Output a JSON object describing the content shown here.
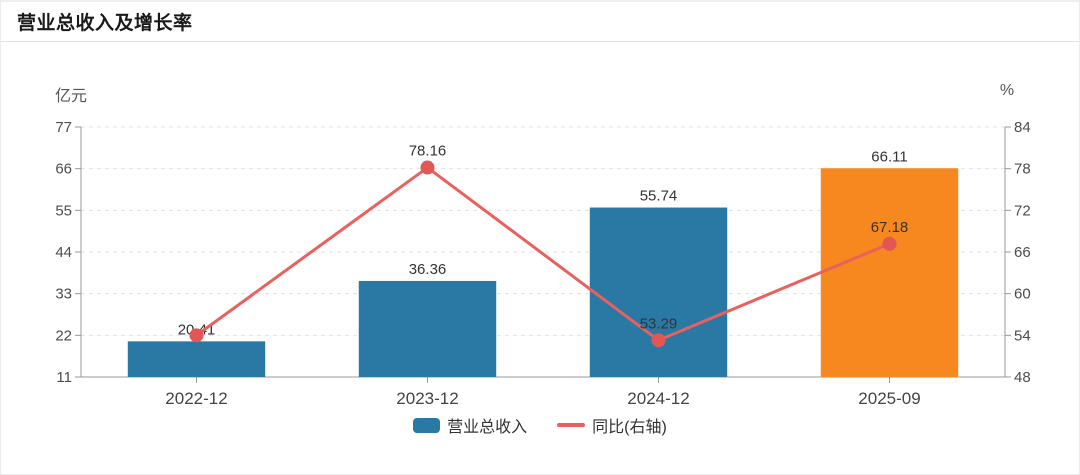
{
  "header": {
    "title": "营业总收入及增长率"
  },
  "chart_data": {
    "type": "bar+line",
    "title": "营业总收入及增长率",
    "categories": [
      "2022-12",
      "2023-12",
      "2024-12",
      "2025-09"
    ],
    "series": [
      {
        "name": "营业总收入",
        "type": "bar",
        "y_axis": "left",
        "unit": "亿元",
        "values": [
          20.41,
          36.36,
          55.74,
          66.11
        ],
        "data_labels": [
          "20.41",
          "36.36",
          "55.74",
          "66.11"
        ],
        "bar_colors": [
          "#2979a4",
          "#2979a4",
          "#2979a4",
          "#f6881f"
        ]
      },
      {
        "name": "同比(右轴)",
        "type": "line",
        "y_axis": "right",
        "unit": "%",
        "values": [
          54.0,
          78.16,
          53.29,
          67.18
        ],
        "data_labels": [
          "",
          "78.16",
          "53.29",
          "67.18"
        ],
        "note": "first point label hidden behind bar label; 54.0 estimated from gridline"
      }
    ],
    "left_axis": {
      "name": "亿元",
      "min": 11,
      "max": 77,
      "ticks": [
        77,
        66,
        55,
        44,
        33,
        22,
        11
      ]
    },
    "right_axis": {
      "name": "%",
      "min": 48,
      "max": 84,
      "ticks": [
        84,
        78,
        72,
        66,
        60,
        54,
        48
      ]
    },
    "x_axis": {
      "labels": [
        "2022-12",
        "2023-12",
        "2024-12",
        "2025-09"
      ]
    },
    "grid": "horizontal-dashed",
    "legend_position": "bottom",
    "legend": [
      {
        "label": "营业总收入",
        "marker": "bar",
        "color": "#2979a4"
      },
      {
        "label": "同比(右轴)",
        "marker": "line",
        "color": "#e8615e"
      }
    ]
  },
  "style": {
    "bar_blue": "#2979a4",
    "bar_orange": "#f6881f",
    "line_red": "#e8615e",
    "point_red": "#e25755",
    "grid_color": "#e2e2e2",
    "axis_color": "#999999",
    "tick_label_color": "#4d4d4d",
    "x_label_color": "#444444",
    "data_label_color": "#333333"
  }
}
